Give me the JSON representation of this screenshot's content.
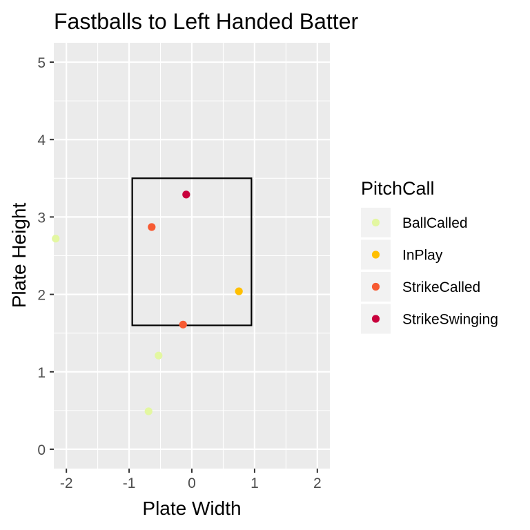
{
  "chart_data": {
    "type": "scatter",
    "title": "Fastballs to Left Handed Batter",
    "xlabel": "Plate Width",
    "ylabel": "Plate Height",
    "xlim": [
      -2.2,
      2.2
    ],
    "ylim": [
      -0.25,
      5.25
    ],
    "x_ticks": [
      -2,
      -1,
      0,
      1,
      2
    ],
    "y_ticks": [
      0,
      1,
      2,
      3,
      4,
      5
    ],
    "grid": true,
    "legend": {
      "title": "PitchCall",
      "position": "right",
      "entries": [
        {
          "label": "BallCalled",
          "color": "#e3f7a1"
        },
        {
          "label": "InPlay",
          "color": "#ffbf00"
        },
        {
          "label": "StrikeCalled",
          "color": "#f75a32"
        },
        {
          "label": "StrikeSwinging",
          "color": "#c8003c"
        }
      ]
    },
    "strike_zone": {
      "x_min": -0.95,
      "x_max": 0.95,
      "y_min": 1.6,
      "y_max": 3.5
    },
    "series": [
      {
        "name": "BallCalled",
        "color": "#e3f7a1",
        "points": [
          {
            "x": -2.17,
            "y": 2.72
          },
          {
            "x": -0.53,
            "y": 1.21
          },
          {
            "x": -0.69,
            "y": 0.49
          }
        ]
      },
      {
        "name": "InPlay",
        "color": "#ffbf00",
        "points": [
          {
            "x": 0.75,
            "y": 2.04
          }
        ]
      },
      {
        "name": "StrikeCalled",
        "color": "#f75a32",
        "points": [
          {
            "x": -0.64,
            "y": 2.87
          },
          {
            "x": -0.14,
            "y": 1.61
          }
        ]
      },
      {
        "name": "StrikeSwinging",
        "color": "#c8003c",
        "points": [
          {
            "x": -0.09,
            "y": 3.29
          }
        ]
      }
    ]
  }
}
